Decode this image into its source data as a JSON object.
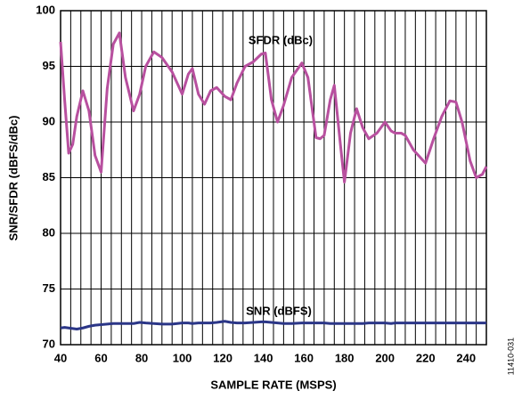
{
  "chart_data": {
    "type": "line",
    "ylabel": "SNR/SFDR (dBFS/dBc)",
    "xlabel": "SAMPLE RATE (MSPS)",
    "figure_id": "11410-031",
    "annotations": [
      "SFDR (dBc)",
      "SNR (dBFS)"
    ],
    "x": [
      40,
      42,
      44,
      46,
      48,
      51,
      54,
      57,
      60,
      63,
      66,
      69,
      72,
      76,
      79,
      82,
      86,
      90,
      95,
      100,
      103,
      105,
      108,
      111,
      114,
      117,
      121,
      124,
      127,
      131,
      135,
      139,
      141,
      144,
      147,
      150,
      154,
      159,
      162,
      166,
      168,
      170,
      173,
      175,
      178,
      180,
      183,
      186,
      189,
      192,
      196,
      200,
      203,
      205,
      208,
      210,
      214,
      220,
      224,
      228,
      232,
      235,
      238,
      242,
      245,
      248,
      250
    ],
    "series": [
      {
        "name": "SFDR (dBc)",
        "color": "#b8509f",
        "values": [
          97.2,
          92,
          87.2,
          88,
          90.5,
          92.8,
          91,
          87,
          85.5,
          93,
          97,
          98,
          94,
          91,
          92.5,
          95,
          96.3,
          95.8,
          94.5,
          92.5,
          94.3,
          94.8,
          92.5,
          91.6,
          92.8,
          93.1,
          92.3,
          92,
          93.5,
          95,
          95.4,
          96.1,
          96.2,
          92,
          90,
          91.5,
          94,
          95.3,
          94,
          88.6,
          88.5,
          88.8,
          92,
          93.3,
          88,
          84.6,
          89,
          91.2,
          89.5,
          88.5,
          89,
          90,
          89.2,
          89,
          89,
          88.8,
          87.5,
          86.3,
          88.5,
          90.5,
          91.9,
          91.8,
          90,
          86.5,
          85,
          85.3,
          86
        ]
      },
      {
        "name": "SNR (dBFS)",
        "color": "#2b3687",
        "values": [
          71.5,
          71.55,
          71.5,
          71.45,
          71.4,
          71.5,
          71.65,
          71.75,
          71.8,
          71.85,
          71.9,
          71.9,
          71.9,
          71.9,
          72,
          71.95,
          71.9,
          71.85,
          71.85,
          71.95,
          71.95,
          71.9,
          71.95,
          71.95,
          71.95,
          72,
          72.1,
          72,
          71.95,
          71.95,
          72,
          72.05,
          72.05,
          72,
          71.95,
          71.9,
          71.9,
          71.95,
          71.95,
          71.95,
          71.95,
          71.95,
          71.9,
          71.9,
          71.9,
          71.9,
          71.9,
          71.9,
          71.9,
          71.95,
          71.95,
          71.95,
          71.9,
          71.95,
          71.95,
          71.95,
          71.95,
          71.95,
          71.95,
          71.95,
          71.95,
          71.95,
          71.95,
          71.95,
          71.95,
          71.95,
          71.95
        ]
      }
    ],
    "xlim": [
      40,
      250
    ],
    "xticks": [
      40,
      60,
      80,
      100,
      120,
      140,
      160,
      180,
      200,
      220,
      240
    ],
    "xgrid": [
      40,
      45,
      50,
      55,
      60,
      65,
      70,
      75,
      80,
      85,
      90,
      95,
      100,
      105,
      110,
      115,
      120,
      125,
      130,
      135,
      140,
      145,
      150,
      155,
      160,
      165,
      170,
      175,
      180,
      185,
      190,
      195,
      200,
      205,
      210,
      215,
      220,
      225,
      230,
      235,
      240,
      245,
      250
    ],
    "ylim": [
      70,
      100
    ],
    "yticks": [
      70,
      75,
      80,
      85,
      90,
      95,
      100
    ],
    "grid": true
  }
}
